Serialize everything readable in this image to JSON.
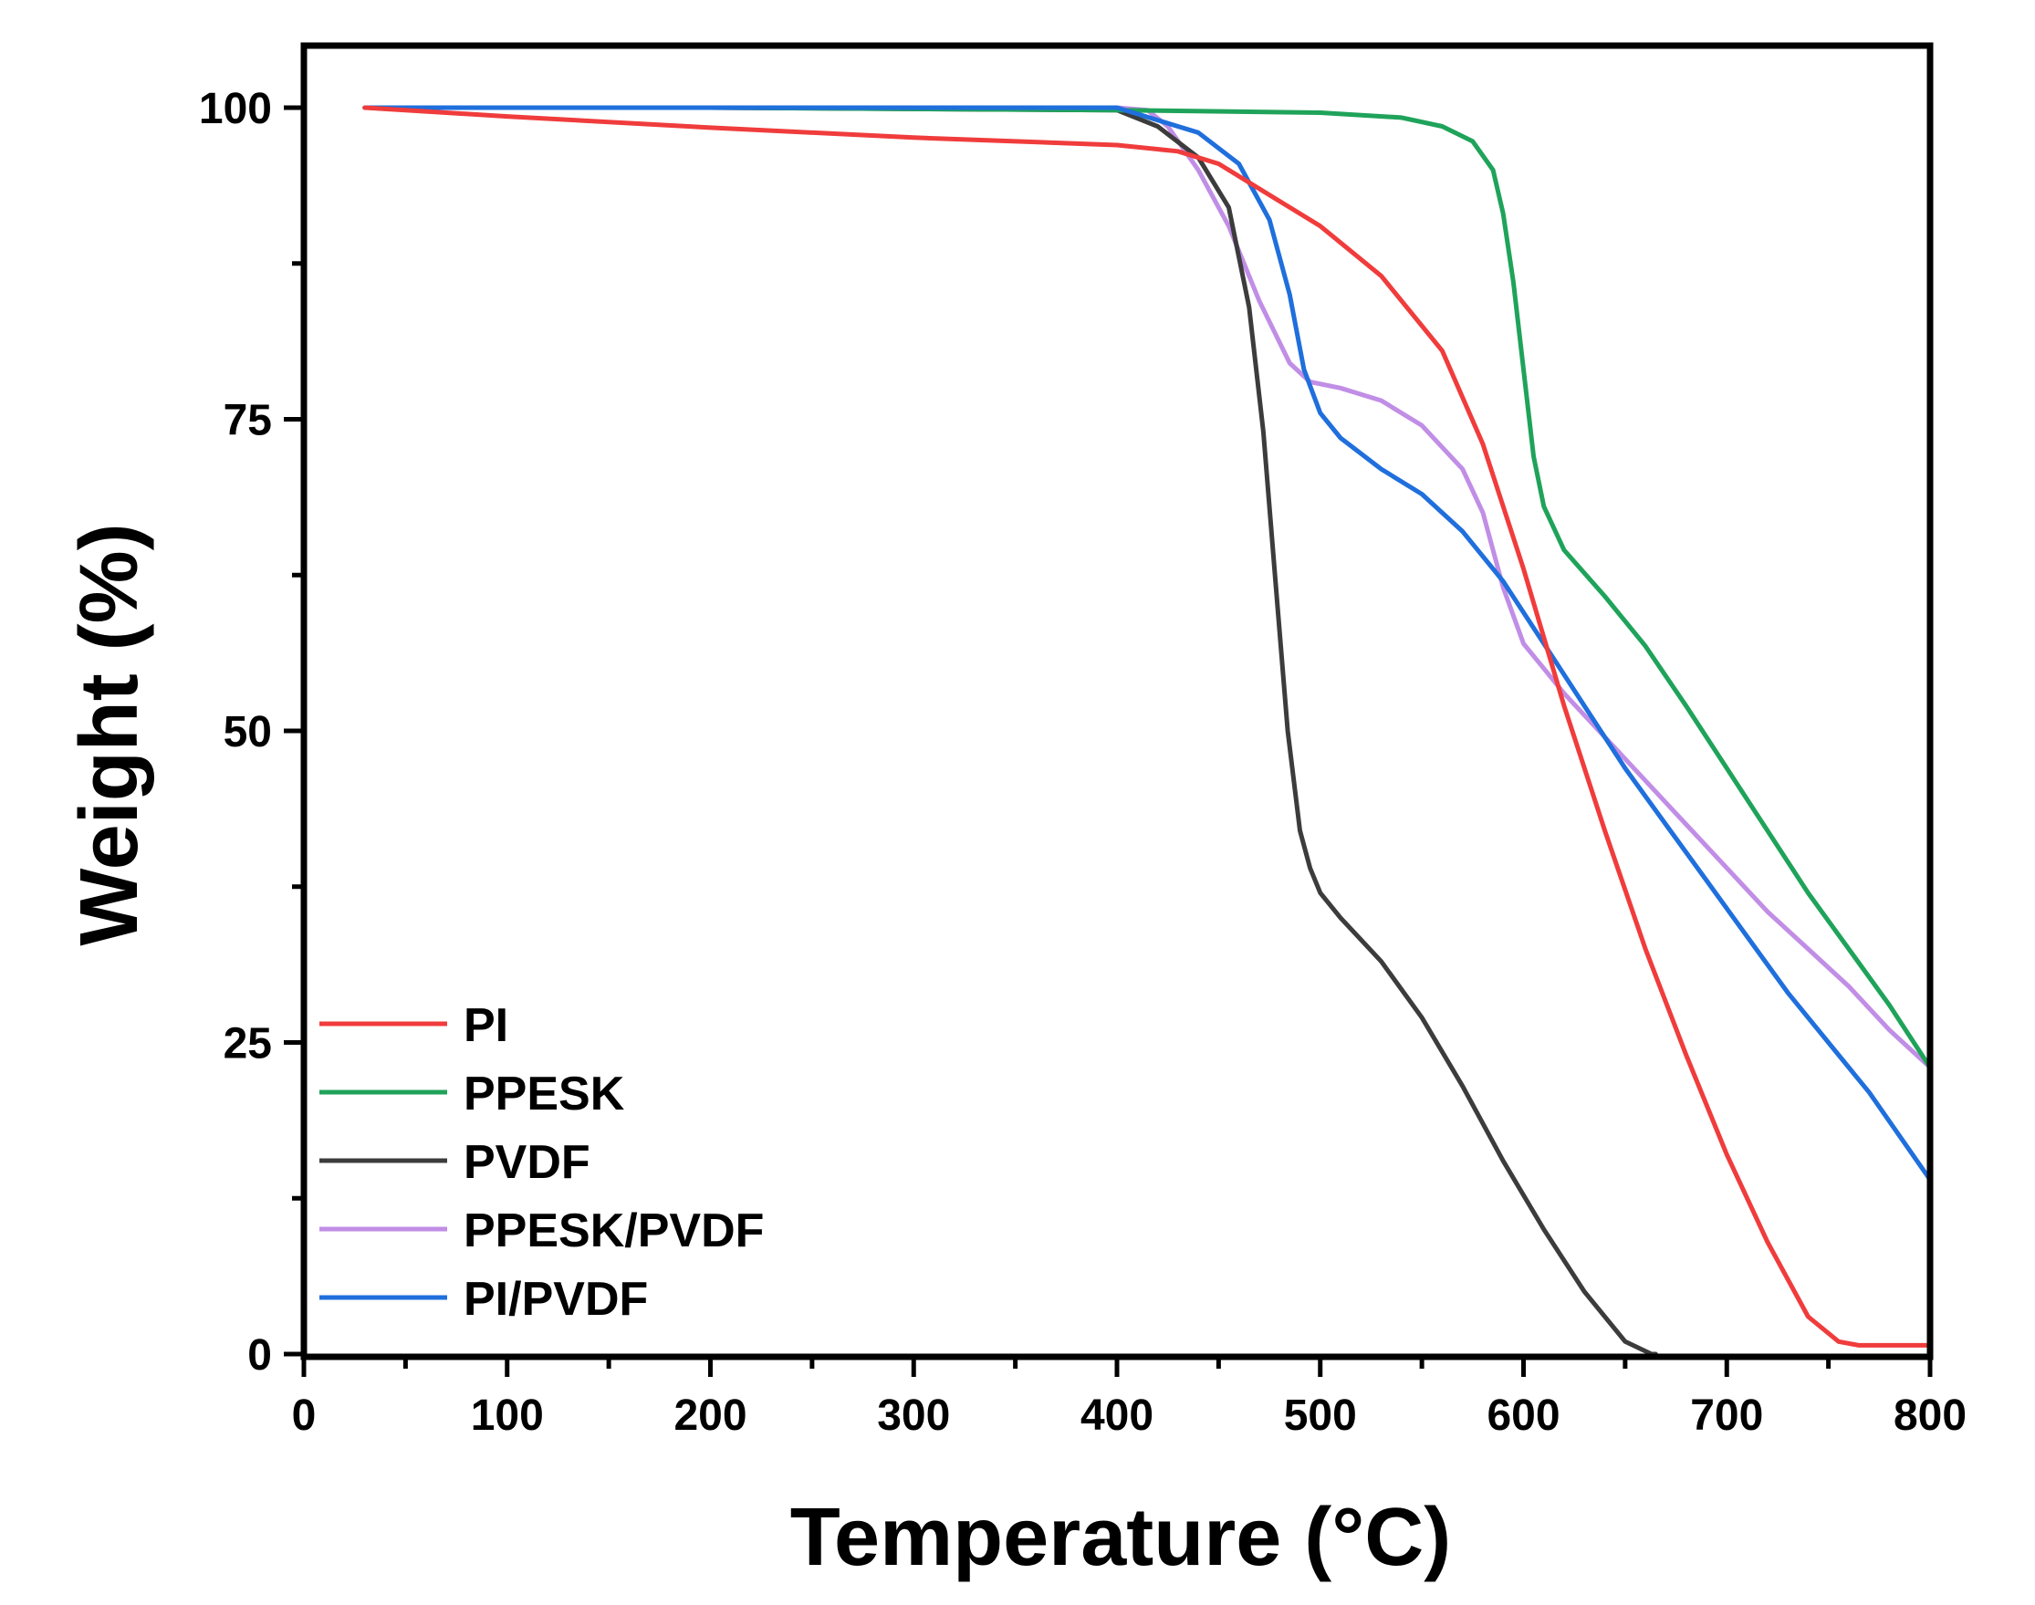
{
  "chart_data": {
    "type": "line",
    "xlabel": "Temperature (°C)",
    "ylabel": "Weight (%)",
    "xlim": [
      0,
      800
    ],
    "ylim": [
      0,
      105
    ],
    "xticks": [
      0,
      100,
      200,
      300,
      400,
      500,
      600,
      700,
      800
    ],
    "yticks": [
      0,
      25,
      50,
      75,
      100
    ],
    "grid": false,
    "legend_position": "bottom-left",
    "series": [
      {
        "name": "PI",
        "color": "#f03c3c",
        "x": [
          30,
          100,
          200,
          300,
          400,
          430,
          450,
          500,
          530,
          560,
          580,
          600,
          620,
          640,
          660,
          680,
          700,
          720,
          740,
          755,
          765,
          800
        ],
        "y": [
          100,
          99.3,
          98.4,
          97.6,
          97,
          96.5,
          95.5,
          90.5,
          86.5,
          80.5,
          73,
          63,
          52,
          42,
          32.5,
          24,
          16,
          9,
          3,
          1,
          0.7,
          0.7
        ]
      },
      {
        "name": "PPESK",
        "color": "#1fa35a",
        "x": [
          30,
          200,
          400,
          500,
          540,
          560,
          575,
          585,
          590,
          595,
          600,
          605,
          610,
          620,
          640,
          660,
          680,
          700,
          720,
          740,
          760,
          780,
          800
        ],
        "y": [
          100,
          100,
          99.8,
          99.6,
          99.2,
          98.5,
          97.3,
          95,
          91.5,
          86,
          79,
          72,
          68,
          64.5,
          60.8,
          56.8,
          52,
          47,
          42,
          37,
          32.5,
          28,
          23
        ]
      },
      {
        "name": "PVDF",
        "color": "#3c3c3c",
        "x": [
          30,
          200,
          400,
          420,
          440,
          455,
          465,
          472,
          478,
          484,
          490,
          495,
          500,
          510,
          530,
          550,
          570,
          590,
          610,
          630,
          650,
          663,
          665
        ],
        "y": [
          100,
          100,
          99.8,
          98.5,
          96,
          92,
          84,
          74,
          62,
          50,
          42,
          39,
          37,
          35,
          31.5,
          27,
          21.5,
          15.5,
          10,
          5,
          1,
          0,
          0
        ]
      },
      {
        "name": "PPESK/PVDF",
        "color": "#c18ee6",
        "x": [
          30,
          200,
          400,
          415,
          425,
          440,
          455,
          470,
          485,
          495,
          510,
          530,
          550,
          570,
          580,
          590,
          600,
          610,
          620,
          640,
          660,
          680,
          700,
          720,
          740,
          760,
          780,
          800
        ],
        "y": [
          100,
          100,
          100,
          99.8,
          98.5,
          95,
          90.5,
          84.5,
          79.5,
          78,
          77.5,
          76.5,
          74.5,
          71,
          67.5,
          61.5,
          57,
          55,
          53,
          49.5,
          46,
          42.5,
          39,
          35.5,
          32.5,
          29.5,
          26,
          23
        ]
      },
      {
        "name": "PI/PVDF",
        "color": "#1f6fdc",
        "x": [
          30,
          200,
          400,
          420,
          440,
          460,
          475,
          485,
          492,
          500,
          510,
          530,
          550,
          570,
          590,
          610,
          630,
          650,
          670,
          690,
          710,
          730,
          750,
          770,
          800
        ],
        "y": [
          100,
          100,
          100,
          99,
          98,
          95.5,
          91,
          85,
          79,
          75.5,
          73.5,
          71,
          69,
          66,
          62,
          57,
          52,
          47,
          42.5,
          38,
          33.5,
          29,
          25,
          21,
          14
        ]
      }
    ]
  }
}
